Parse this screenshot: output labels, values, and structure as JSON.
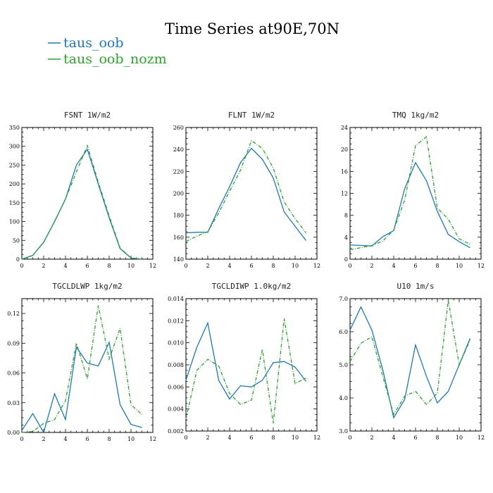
{
  "title": "Time Series at90E,70N",
  "legend": [
    {
      "name": "taus_oob",
      "color": "#1f77b4"
    },
    {
      "name": "taus_oob_nozm",
      "color": "#2ca02c"
    }
  ],
  "chart_data": [
    {
      "type": "line",
      "title": "FSNT   1W/m2",
      "xlim": [
        0,
        12
      ],
      "xticks": [
        "0",
        "2",
        "4",
        "6",
        "8",
        "10",
        "12"
      ],
      "ylim": [
        0,
        350
      ],
      "yticks": [
        "0",
        "50",
        "100",
        "150",
        "200",
        "250",
        "300",
        "350"
      ],
      "x": [
        0,
        1,
        2,
        3,
        4,
        5,
        6,
        7,
        8,
        9,
        10,
        11
      ],
      "series": [
        {
          "name": "taus_oob",
          "values": [
            0,
            10,
            45,
            100,
            160,
            250,
            292,
            200,
            110,
            28,
            3,
            0
          ]
        },
        {
          "name": "taus_oob_nozm",
          "values": [
            0,
            10,
            45,
            100,
            160,
            232,
            302,
            205,
            115,
            30,
            3,
            0
          ]
        }
      ]
    },
    {
      "type": "line",
      "title": "FLNT   1W/m2",
      "xlim": [
        0,
        12
      ],
      "xticks": [
        "0",
        "2",
        "4",
        "6",
        "8",
        "10",
        "12"
      ],
      "ylim": [
        140,
        260
      ],
      "yticks": [
        "140",
        "160",
        "180",
        "200",
        "220",
        "240",
        "260"
      ],
      "x": [
        0,
        1,
        2,
        3,
        4,
        5,
        6,
        7,
        8,
        9,
        10,
        11
      ],
      "series": [
        {
          "name": "taus_oob",
          "values": [
            164,
            164.5,
            164.5,
            186,
            206,
            228,
            241,
            231,
            214,
            183,
            170,
            157
          ]
        },
        {
          "name": "taus_oob_nozm",
          "values": [
            156,
            161,
            165,
            182,
            202,
            221,
            248,
            241,
            223,
            192,
            177,
            164
          ]
        }
      ]
    },
    {
      "type": "line",
      "title": "TMQ   1kg/m2",
      "xlim": [
        0,
        12
      ],
      "xticks": [
        "0",
        "2",
        "4",
        "6",
        "8",
        "10",
        "12"
      ],
      "ylim": [
        0,
        24
      ],
      "yticks": [
        "0",
        "4",
        "8",
        "12",
        "16",
        "20",
        "24"
      ],
      "x": [
        0,
        1,
        2,
        3,
        4,
        5,
        6,
        7,
        8,
        9,
        10,
        11
      ],
      "series": [
        {
          "name": "taus_oob",
          "values": [
            2.6,
            2.5,
            2.4,
            4.1,
            5.2,
            12.8,
            17.6,
            14.3,
            8.7,
            4.5,
            3.2,
            2.1
          ]
        },
        {
          "name": "taus_oob_nozm",
          "values": [
            1.7,
            2.1,
            2.5,
            3.3,
            5.3,
            10.7,
            20.7,
            22.3,
            9.3,
            7.3,
            3.7,
            2.7
          ]
        }
      ]
    },
    {
      "type": "line",
      "title": "TGCLDLWP   1kg/m2",
      "xlim": [
        0,
        12
      ],
      "xticks": [
        "0",
        "2",
        "4",
        "6",
        "8",
        "10",
        "12"
      ],
      "ylim": [
        0,
        0.135
      ],
      "yticks": [
        "0.00",
        "0.03",
        "0.06",
        "0.09",
        "0.12"
      ],
      "ytickvals": [
        0,
        0.03,
        0.06,
        0.09,
        0.12
      ],
      "x": [
        0,
        1,
        2,
        3,
        4,
        5,
        6,
        7,
        8,
        9,
        10,
        11
      ],
      "series": [
        {
          "name": "taus_oob",
          "values": [
            0.002,
            0.019,
            0.0,
            0.039,
            0.013,
            0.086,
            0.07,
            0.067,
            0.091,
            0.028,
            0.008,
            0.005
          ]
        },
        {
          "name": "taus_oob_nozm",
          "values": [
            0.0,
            0.001,
            0.009,
            0.013,
            0.032,
            0.09,
            0.054,
            0.128,
            0.074,
            0.105,
            0.028,
            0.018
          ]
        }
      ]
    },
    {
      "type": "line",
      "title": "TGCLDIWP   1.0kg/m2",
      "xlim": [
        0,
        12
      ],
      "xticks": [
        "0",
        "2",
        "4",
        "6",
        "8",
        "10",
        "12"
      ],
      "ylim": [
        0.002,
        0.014
      ],
      "yticks": [
        "0.002",
        "0.004",
        "0.006",
        "0.008",
        "0.010",
        "0.012",
        "0.014"
      ],
      "ytickvals": [
        0.002,
        0.004,
        0.006,
        0.008,
        0.01,
        0.012,
        0.014
      ],
      "x": [
        0,
        1,
        2,
        3,
        4,
        5,
        6,
        7,
        8,
        9,
        10,
        11
      ],
      "series": [
        {
          "name": "taus_oob",
          "values": [
            0.0066,
            0.0096,
            0.0118,
            0.0066,
            0.0049,
            0.0061,
            0.006,
            0.0066,
            0.0082,
            0.0083,
            0.0078,
            0.0065
          ]
        },
        {
          "name": "taus_oob_nozm",
          "values": [
            0.0031,
            0.0075,
            0.0085,
            0.0079,
            0.0054,
            0.0044,
            0.0048,
            0.0094,
            0.0027,
            0.0122,
            0.0063,
            0.0068
          ]
        }
      ]
    },
    {
      "type": "line",
      "title": "U10   1m/s",
      "xlim": [
        0,
        12
      ],
      "xticks": [
        "0",
        "2",
        "4",
        "6",
        "8",
        "10",
        "12"
      ],
      "ylim": [
        3.0,
        7.0
      ],
      "yticks": [
        "3.0",
        "4.0",
        "5.0",
        "6.0",
        "7.0"
      ],
      "ytickvals": [
        3.0,
        4.0,
        5.0,
        6.0,
        7.0
      ],
      "x": [
        0,
        1,
        2,
        3,
        4,
        5,
        6,
        7,
        8,
        9,
        10,
        11
      ],
      "series": [
        {
          "name": "taus_oob",
          "values": [
            6.05,
            6.75,
            6.05,
            4.85,
            3.4,
            3.95,
            5.6,
            4.65,
            3.85,
            4.2,
            5.0,
            5.8
          ]
        },
        {
          "name": "taus_oob_nozm",
          "values": [
            5.1,
            5.65,
            5.85,
            4.65,
            3.5,
            4.05,
            4.2,
            3.8,
            4.15,
            6.95,
            5.0,
            5.75
          ]
        }
      ]
    }
  ]
}
